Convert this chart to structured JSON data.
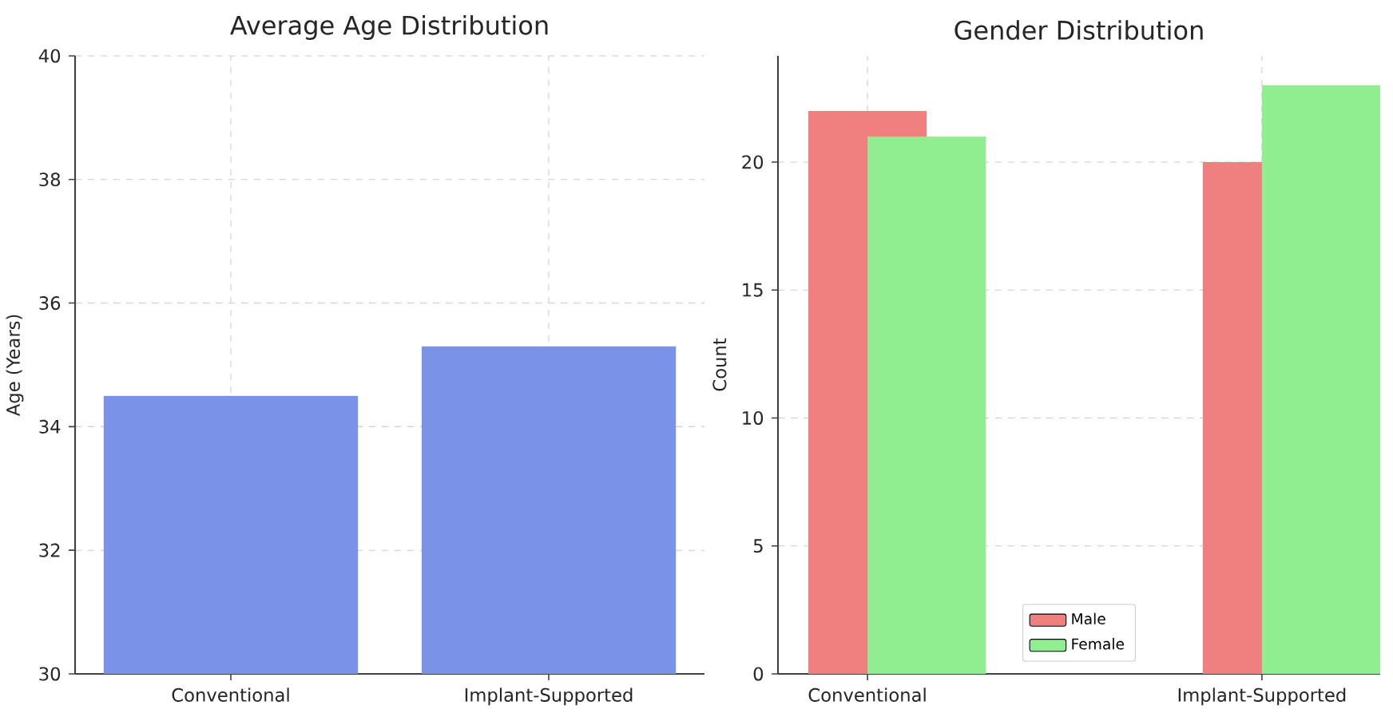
{
  "chart_data": [
    {
      "type": "bar",
      "title": "Average Age Distribution",
      "ylabel": "Age (Years)",
      "categories": [
        "Conventional",
        "Implant-Supported"
      ],
      "values": [
        34.5,
        35.3
      ],
      "color": "#7a93e8",
      "ylim": [
        30,
        40
      ],
      "yticks": [
        30,
        32,
        34,
        36,
        38,
        40
      ],
      "grid": true
    },
    {
      "type": "bar",
      "title": "Gender Distribution",
      "ylabel": "Count",
      "categories": [
        "Conventional",
        "Implant-Supported"
      ],
      "series": [
        {
          "name": "Male",
          "color": "#f08080",
          "values": [
            22,
            20
          ]
        },
        {
          "name": "Female",
          "color": "#90ee90",
          "values": [
            21,
            23
          ]
        }
      ],
      "ylim": [
        0,
        24.15
      ],
      "yticks": [
        0,
        5,
        10,
        15,
        20
      ],
      "grid": true,
      "legend": "bottom"
    }
  ]
}
